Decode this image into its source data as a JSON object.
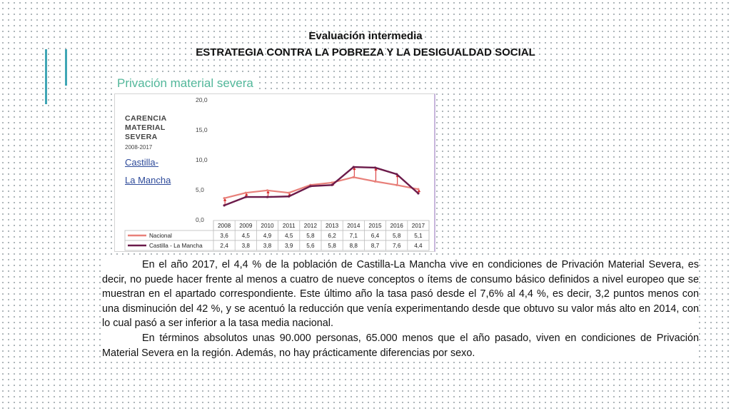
{
  "header": {
    "subtitle": "Evaluación intermedia",
    "title": "ESTRATEGIA CONTRA LA POBREZA Y LA DESIGUALDAD SOCIAL"
  },
  "section_title": "Privación material severa",
  "chart_side": {
    "title_lines": [
      "CARENCIA",
      "MATERIAL",
      "SEVERA"
    ],
    "years": "2008-2017",
    "region_lines": [
      "Castilla-",
      "La Mancha"
    ]
  },
  "chart_data": {
    "type": "line",
    "x": [
      "2008",
      "2009",
      "2010",
      "2011",
      "2012",
      "2013",
      "2014",
      "2015",
      "2016",
      "2017"
    ],
    "ylim": [
      0,
      20
    ],
    "yticks": [
      "0,0",
      "5,0",
      "10,0",
      "15,0",
      "20,0"
    ],
    "ytick_values": [
      0,
      5,
      10,
      15,
      20
    ],
    "grid": false,
    "legend": "table-below",
    "series": [
      {
        "name": "Nacional",
        "color": "#e8807a",
        "values": [
          3.6,
          4.5,
          4.9,
          4.5,
          5.8,
          6.2,
          7.1,
          6.4,
          5.8,
          5.1
        ],
        "labels": [
          "3,6",
          "4,5",
          "4,9",
          "4,5",
          "5,8",
          "6,2",
          "7,1",
          "6,4",
          "5,8",
          "5,1"
        ]
      },
      {
        "name": "Castilla - La Mancha",
        "color": "#6b1a4a",
        "values": [
          2.4,
          3.8,
          3.8,
          3.9,
          5.6,
          5.8,
          8.8,
          8.7,
          7.6,
          4.4
        ],
        "labels": [
          "2,4",
          "3,8",
          "3,8",
          "3,9",
          "5,6",
          "5,8",
          "8,8",
          "8,7",
          "7,6",
          "4,4"
        ]
      }
    ],
    "gap_arrow_color": "#d82b2b"
  },
  "body": {
    "p1": "En el año 2017, el 4,4 % de la población de Castilla-La Mancha vive en condiciones de Privación Material Severa, es decir, no puede hacer frente al menos a cuatro de nueve conceptos o ítems de consumo básico definidos a nivel europeo que se muestran en el apartado correspondiente. Este último año la tasa pasó desde el 7,6% al 4,4 %, es decir, 3,2 puntos menos con una disminución del 42 %, y se acentuó la reducción que venía experimentando desde que obtuvo su valor más alto en 2014, con lo cual pasó a ser inferior a la tasa media nacional.",
    "p2": "En términos absolutos unas 90.000 personas, 65.000 menos que el año pasado, viven en condiciones de Privación Material Severa en la región. Además, no hay prácticamente diferencias por sexo."
  },
  "colors": {
    "accent": "#3fa6b5",
    "section_title": "#52b79a",
    "region_link": "#2d4a9a"
  }
}
